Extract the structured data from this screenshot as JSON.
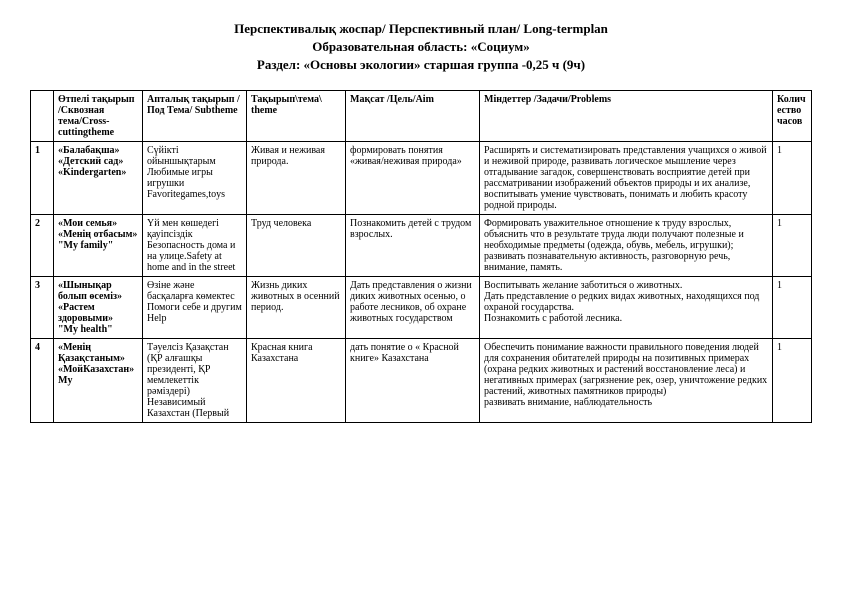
{
  "header": {
    "title": "Перспективалық жоспар/ Перспективный план/ Long-termplan",
    "subtitle1": "Образовательная область: «Социум»",
    "subtitle2": "Раздел: «Основы экологии»  старшая группа -0,25 ч (9ч)"
  },
  "table": {
    "columns": {
      "num": "",
      "cross": "Өтпелі тақырып /Сквозная тема/Cross-cuttingtheme",
      "sub": "Апталық тақырып /Под Тема/ Subtheme",
      "theme": "Тақырып\\тема\\ theme",
      "aim": "Мақсат /Цель/Aim",
      "prob": "Міндеттер /Задачи/Problems",
      "hours": "Количество часов"
    },
    "rows": [
      {
        "num": "1",
        "cross": "«Балабақша»\n«Детский сад»\n«Kindergarten»",
        "sub": "Сүйікті ойыншықтарым Любимые игры игрушки Favoritegames,toys",
        "theme": "Живая и неживая природа.",
        "aim": "формировать понятия «живая/неживая природа»",
        "prob": "Расширять и систематизировать представления учащихся о живой и неживой природе, развивать логическое мышление через отгадывание загадок, совершенствовать восприятие детей при рассматривании изображений объектов природы и их анализе, воспитывать умение чувствовать, понимать и любить красоту родной природы.",
        "hours": "1"
      },
      {
        "num": "2",
        "cross": "«Мои семья»\n«Менің отбасым»\n\"My family\"",
        "sub": "Үй мен көшедегі қауіпсіздік Безопасность дома и на улице.Safety at home and in the street",
        "theme": "Труд человека",
        "aim": "Познакомить детей с трудом взрослых.",
        "prob": "Формировать уважительное отношение к труду взрослых, объяснить что в результате труда люди получают полезные и необходимые предметы (одежда, обувь, мебель, игрушки); развивать познавательную активность, разговорную речь, внимание, память.",
        "hours": "1"
      },
      {
        "num": "3",
        "cross": "«Шынықар болып өсеміз»\n«Растем здоровыми»\n\"My health\"",
        "sub": "Өзіне және басқаларға көмектес Помоги себе и другим Help",
        "theme": "Жизнь диких животных в осенний период.",
        "aim": "Дать представления о жизни диких животных осенью, о работе лесников, об охране животных государством",
        "prob": "Воспитывать желание заботиться о животных.\nДать представление о редких видах животных, находящихся под охраной государства.\nПознакомить с работой лесника.",
        "hours": "1"
      },
      {
        "num": "4",
        "cross": "«Менің Қазақстаным»\n«МойКазахстан»\nMy",
        "sub": "Тәуелсіз Қазақстан (ҚР алғашқы президенті, ҚР мемлекеттік рәміздері)\nНезависимый Казахстан (Первый",
        "theme": "Красная книга Казахстана",
        "aim": "дать понятие о « Красной книге»  Казахстана",
        "prob": "Обеспечить понимание важности правильного поведения людей для сохранения обитателей природы на позитивных примерах (охрана редких животных и растений восстановление леса) и негативных примерах (загрязнение рек, озер, уничтожение редких растений, животных памятников природы)\nразвивать внимание, наблюдательность",
        "hours": "1"
      }
    ]
  }
}
